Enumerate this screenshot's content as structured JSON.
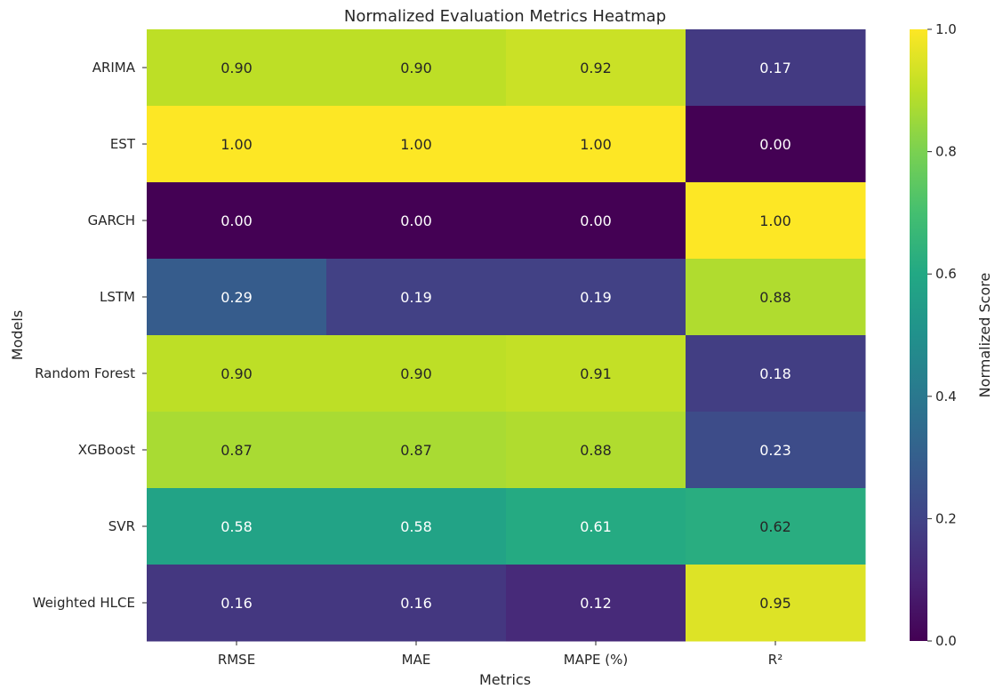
{
  "chart_data": {
    "type": "heatmap",
    "title": "Normalized Evaluation Metrics Heatmap",
    "xlabel": "Metrics",
    "ylabel": "Models",
    "x_categories": [
      "RMSE",
      "MAE",
      "MAPE (%)",
      "R²"
    ],
    "y_categories": [
      "ARIMA",
      "EST",
      "GARCH",
      "LSTM",
      "Random Forest",
      "XGBoost",
      "SVR",
      "Weighted HLCE"
    ],
    "values": [
      [
        0.9,
        0.9,
        0.92,
        0.17
      ],
      [
        1.0,
        1.0,
        1.0,
        0.0
      ],
      [
        0.0,
        0.0,
        0.0,
        1.0
      ],
      [
        0.29,
        0.19,
        0.19,
        0.88
      ],
      [
        0.9,
        0.9,
        0.91,
        0.18
      ],
      [
        0.87,
        0.87,
        0.88,
        0.23
      ],
      [
        0.58,
        0.58,
        0.61,
        0.62
      ],
      [
        0.16,
        0.16,
        0.12,
        0.95
      ]
    ],
    "annotation_format": "2 decimals",
    "colormap": "viridis",
    "colorbar": {
      "label": "Normalized Score",
      "range": [
        0,
        1
      ],
      "ticks": [
        "0.0",
        "0.2",
        "0.4",
        "0.6",
        "0.8",
        "1.0"
      ],
      "placement": "right"
    },
    "grid": false
  }
}
